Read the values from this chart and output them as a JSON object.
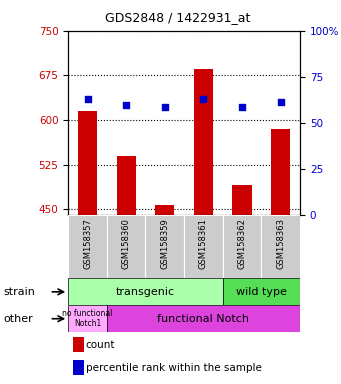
{
  "title": "GDS2848 / 1422931_at",
  "samples": [
    "GSM158357",
    "GSM158360",
    "GSM158359",
    "GSM158361",
    "GSM158362",
    "GSM158363"
  ],
  "bar_values": [
    615,
    540,
    457,
    685,
    490,
    585
  ],
  "percentile_values": [
    635,
    625,
    622,
    636,
    622,
    630
  ],
  "ymin": 440,
  "ymax": 750,
  "yticks_left": [
    450,
    525,
    600,
    675,
    750
  ],
  "yticks_right": [
    0,
    25,
    50,
    75,
    100
  ],
  "bar_color": "#cc0000",
  "dot_color": "#0000cc",
  "strain_row_label": "strain",
  "other_row_label": "other",
  "transgenic_label": "transgenic",
  "wildtype_label": "wild type",
  "no_functional_label": "no functional\nNotch1",
  "functional_label": "functional Notch",
  "legend_count": "count",
  "legend_percentile": "percentile rank within the sample",
  "transgenic_color": "#aaffaa",
  "wildtype_color": "#55dd55",
  "no_functional_color": "#ffaaff",
  "functional_color": "#dd44dd",
  "tick_label_color_left": "#cc0000",
  "tick_label_color_right": "#0000cc",
  "sample_box_color": "#cccccc",
  "fig_width": 3.41,
  "fig_height": 3.84,
  "dpi": 100
}
